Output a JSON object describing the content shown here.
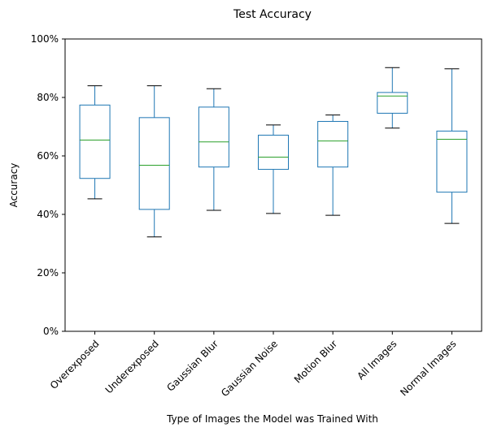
{
  "chart_data": {
    "type": "box",
    "title": "Test Accuracy",
    "xlabel": "Type of Images the Model was Trained With",
    "ylabel": "Accuracy",
    "ylim": [
      0,
      100
    ],
    "y_ticks": [
      "0%",
      "20%",
      "40%",
      "60%",
      "80%",
      "100%"
    ],
    "y_tick_values": [
      0,
      20,
      40,
      60,
      80,
      100
    ],
    "grid": false,
    "categories": [
      "Overexposed",
      "Underexposed",
      "Gaussian Blur",
      "Gaussian Noise",
      "Motion Blur",
      "All Images",
      "Normal Images"
    ],
    "boxes": [
      {
        "whisker_low": 45.3,
        "q1": 52.3,
        "median": 65.4,
        "q3": 77.4,
        "whisker_high": 84.0
      },
      {
        "whisker_low": 32.3,
        "q1": 41.7,
        "median": 56.8,
        "q3": 73.1,
        "whisker_high": 84.0
      },
      {
        "whisker_low": 41.4,
        "q1": 56.2,
        "median": 64.8,
        "q3": 76.7,
        "whisker_high": 83.0
      },
      {
        "whisker_low": 40.3,
        "q1": 55.4,
        "median": 59.6,
        "q3": 67.1,
        "whisker_high": 70.6
      },
      {
        "whisker_low": 39.7,
        "q1": 56.2,
        "median": 65.1,
        "q3": 71.8,
        "whisker_high": 74.0
      },
      {
        "whisker_low": 69.5,
        "q1": 74.6,
        "median": 80.5,
        "q3": 81.7,
        "whisker_high": 90.2
      },
      {
        "whisker_low": 36.9,
        "q1": 47.6,
        "median": 65.7,
        "q3": 68.5,
        "whisker_high": 89.8
      }
    ],
    "colors": {
      "box": "#1f77b4",
      "median": "#2ca02c",
      "whisker_cap": "#000000",
      "axes": "#000000"
    }
  }
}
